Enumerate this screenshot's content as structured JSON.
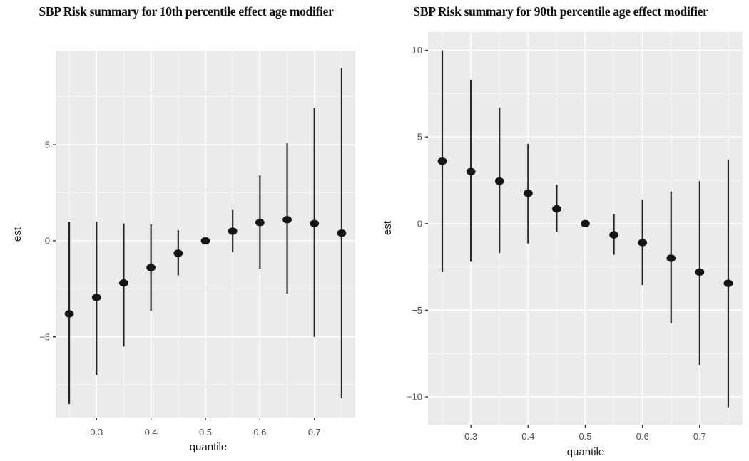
{
  "figure": {
    "background": "#ffffff"
  },
  "colors": {
    "panel_bg": "#ebebeb",
    "grid_major": "#ffffff",
    "grid_minor": "#f6f6f6",
    "range_line": "#262626",
    "point_fill": "#151515",
    "tick_mark": "#333333",
    "tick_label": "#4d4d52",
    "axis_title": "#1f1f23",
    "title_text": "#0d0d0d"
  },
  "chart_data": [
    {
      "type": "pointrange",
      "title": "SBP Risk summary for 10th percentile effect age modifier",
      "xlabel": "quantile",
      "ylabel": "est",
      "legend": "none",
      "grid": true,
      "xlim": [
        0.225,
        0.775
      ],
      "ylim": [
        -9.2,
        9.9
      ],
      "x_ticks": [
        0.3,
        0.4,
        0.5,
        0.6,
        0.7
      ],
      "x_tick_labels": [
        "0.3",
        "0.4",
        "0.5",
        "0.6",
        "0.7"
      ],
      "x_minor": [
        0.25,
        0.35,
        0.45,
        0.55,
        0.65,
        0.75
      ],
      "y_ticks": [
        5,
        0,
        -5
      ],
      "y_tick_labels": [
        "5",
        "0",
        "−5"
      ],
      "y_minor": [
        7.5,
        2.5,
        -2.5,
        -7.5
      ],
      "points": {
        "x": [
          0.25,
          0.3,
          0.35,
          0.4,
          0.45,
          0.5,
          0.55,
          0.6,
          0.65,
          0.7,
          0.75
        ],
        "est": [
          -3.8,
          -2.95,
          -2.2,
          -1.4,
          -0.65,
          0.0,
          0.5,
          0.95,
          1.1,
          0.9,
          0.4
        ],
        "upper": [
          1.0,
          1.0,
          0.9,
          0.85,
          0.55,
          0.08,
          1.6,
          3.4,
          5.1,
          6.9,
          9.0
        ],
        "lower": [
          -8.5,
          -7.0,
          -5.5,
          -3.65,
          -1.8,
          -0.08,
          -0.6,
          -1.45,
          -2.75,
          -5.0,
          -8.2
        ]
      }
    },
    {
      "type": "pointrange",
      "title": "SBP Risk summary for 90th percentile age effect modifier",
      "xlabel": "quantile",
      "ylabel": "est",
      "legend": "none",
      "grid": true,
      "xlim": [
        0.225,
        0.775
      ],
      "ylim": [
        -11.6,
        11.05
      ],
      "x_ticks": [
        0.3,
        0.4,
        0.5,
        0.6,
        0.7
      ],
      "x_tick_labels": [
        "0.3",
        "0.4",
        "0.5",
        "0.6",
        "0.7"
      ],
      "x_minor": [
        0.25,
        0.35,
        0.45,
        0.55,
        0.65,
        0.75
      ],
      "y_ticks": [
        10,
        5,
        0,
        -5,
        -10
      ],
      "y_tick_labels": [
        "10",
        "5",
        "0",
        "−5",
        "−10"
      ],
      "y_minor": [
        7.5,
        2.5,
        -2.5,
        -7.5
      ],
      "points": {
        "x": [
          0.25,
          0.3,
          0.35,
          0.4,
          0.45,
          0.5,
          0.55,
          0.6,
          0.65,
          0.7,
          0.75
        ],
        "est": [
          3.6,
          3.0,
          2.45,
          1.75,
          0.85,
          0.0,
          -0.65,
          -1.1,
          -2.0,
          -2.8,
          -3.45
        ],
        "upper": [
          10.0,
          8.3,
          6.7,
          4.6,
          2.25,
          0.08,
          0.55,
          1.4,
          1.85,
          2.45,
          3.7
        ],
        "lower": [
          -2.8,
          -2.2,
          -1.7,
          -1.15,
          -0.5,
          -0.08,
          -1.8,
          -3.55,
          -5.75,
          -8.15,
          -10.6
        ]
      }
    }
  ]
}
